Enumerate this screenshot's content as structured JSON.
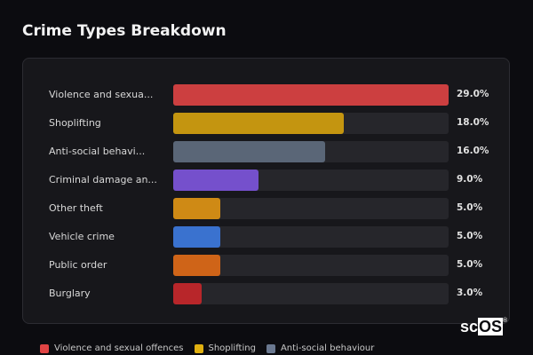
{
  "title": "Crime Types Breakdown",
  "logo": {
    "prefix": "sc",
    "suffix": "OS",
    "mark": "®"
  },
  "chart_data": {
    "type": "bar",
    "orientation": "horizontal",
    "title": "Crime Types Breakdown",
    "categories": [
      "Violence and sexua...",
      "Shoplifting",
      "Anti-social behavi...",
      "Criminal damage an...",
      "Other theft",
      "Vehicle crime",
      "Public order",
      "Burglary"
    ],
    "values": [
      29.0,
      18.0,
      16.0,
      9.0,
      5.0,
      5.0,
      5.0,
      3.0
    ],
    "value_labels": [
      "29.0%",
      "18.0%",
      "16.0%",
      "9.0%",
      "5.0%",
      "5.0%",
      "5.0%",
      "3.0%"
    ],
    "colors": [
      "#cc3f40",
      "#c49510",
      "#5a6677",
      "#7550cc",
      "#cf8a15",
      "#3a72cf",
      "#cf6418",
      "#b8262a"
    ],
    "xlim": [
      0,
      29
    ],
    "grid": false,
    "legend_position": "bottom",
    "legend": [
      {
        "label": "Violence and sexual offences",
        "color": "#e04444"
      },
      {
        "label": "Shoplifting",
        "color": "#e0b010"
      },
      {
        "label": "Anti-social behaviour",
        "color": "#6a7890"
      }
    ]
  }
}
